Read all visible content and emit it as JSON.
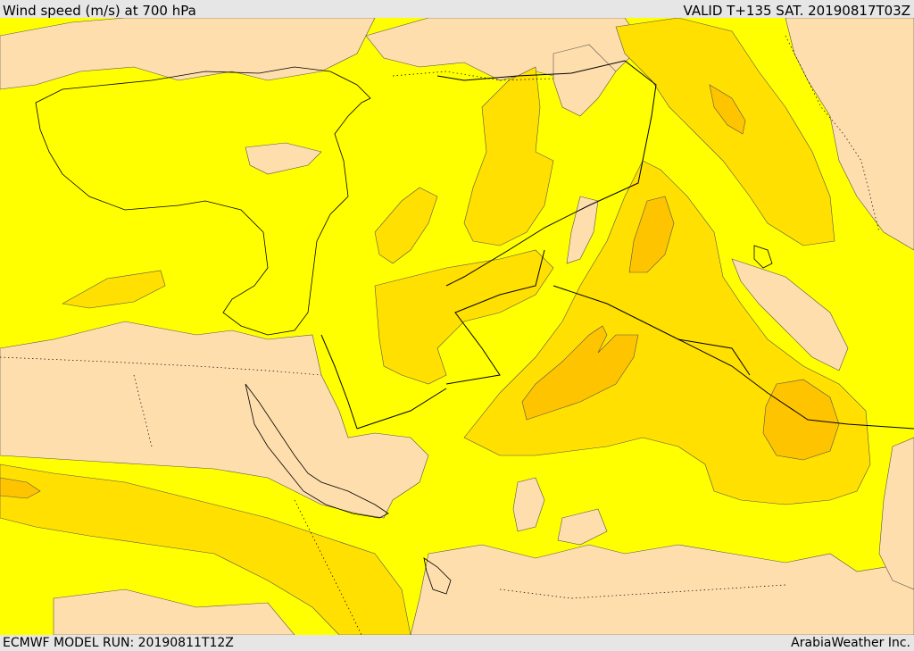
{
  "header": {
    "title": "Wind speed (m/s) at 700 hPa",
    "valid_time": "VALID T+135 SAT. 20190817T03Z"
  },
  "footer": {
    "model_run": "ECMWF MODEL RUN: 20190811T12Z",
    "credit": "ArabiaWeather Inc."
  },
  "colors": {
    "background_field": "#ffff00",
    "low_wind": "#ffdead",
    "moderate_wind": "#ffe000",
    "strong_wind": "#ffc400",
    "stronger_wind": "#ffb000",
    "water_masked": "#ffffff",
    "page_frame": "#e6e6e6"
  }
}
